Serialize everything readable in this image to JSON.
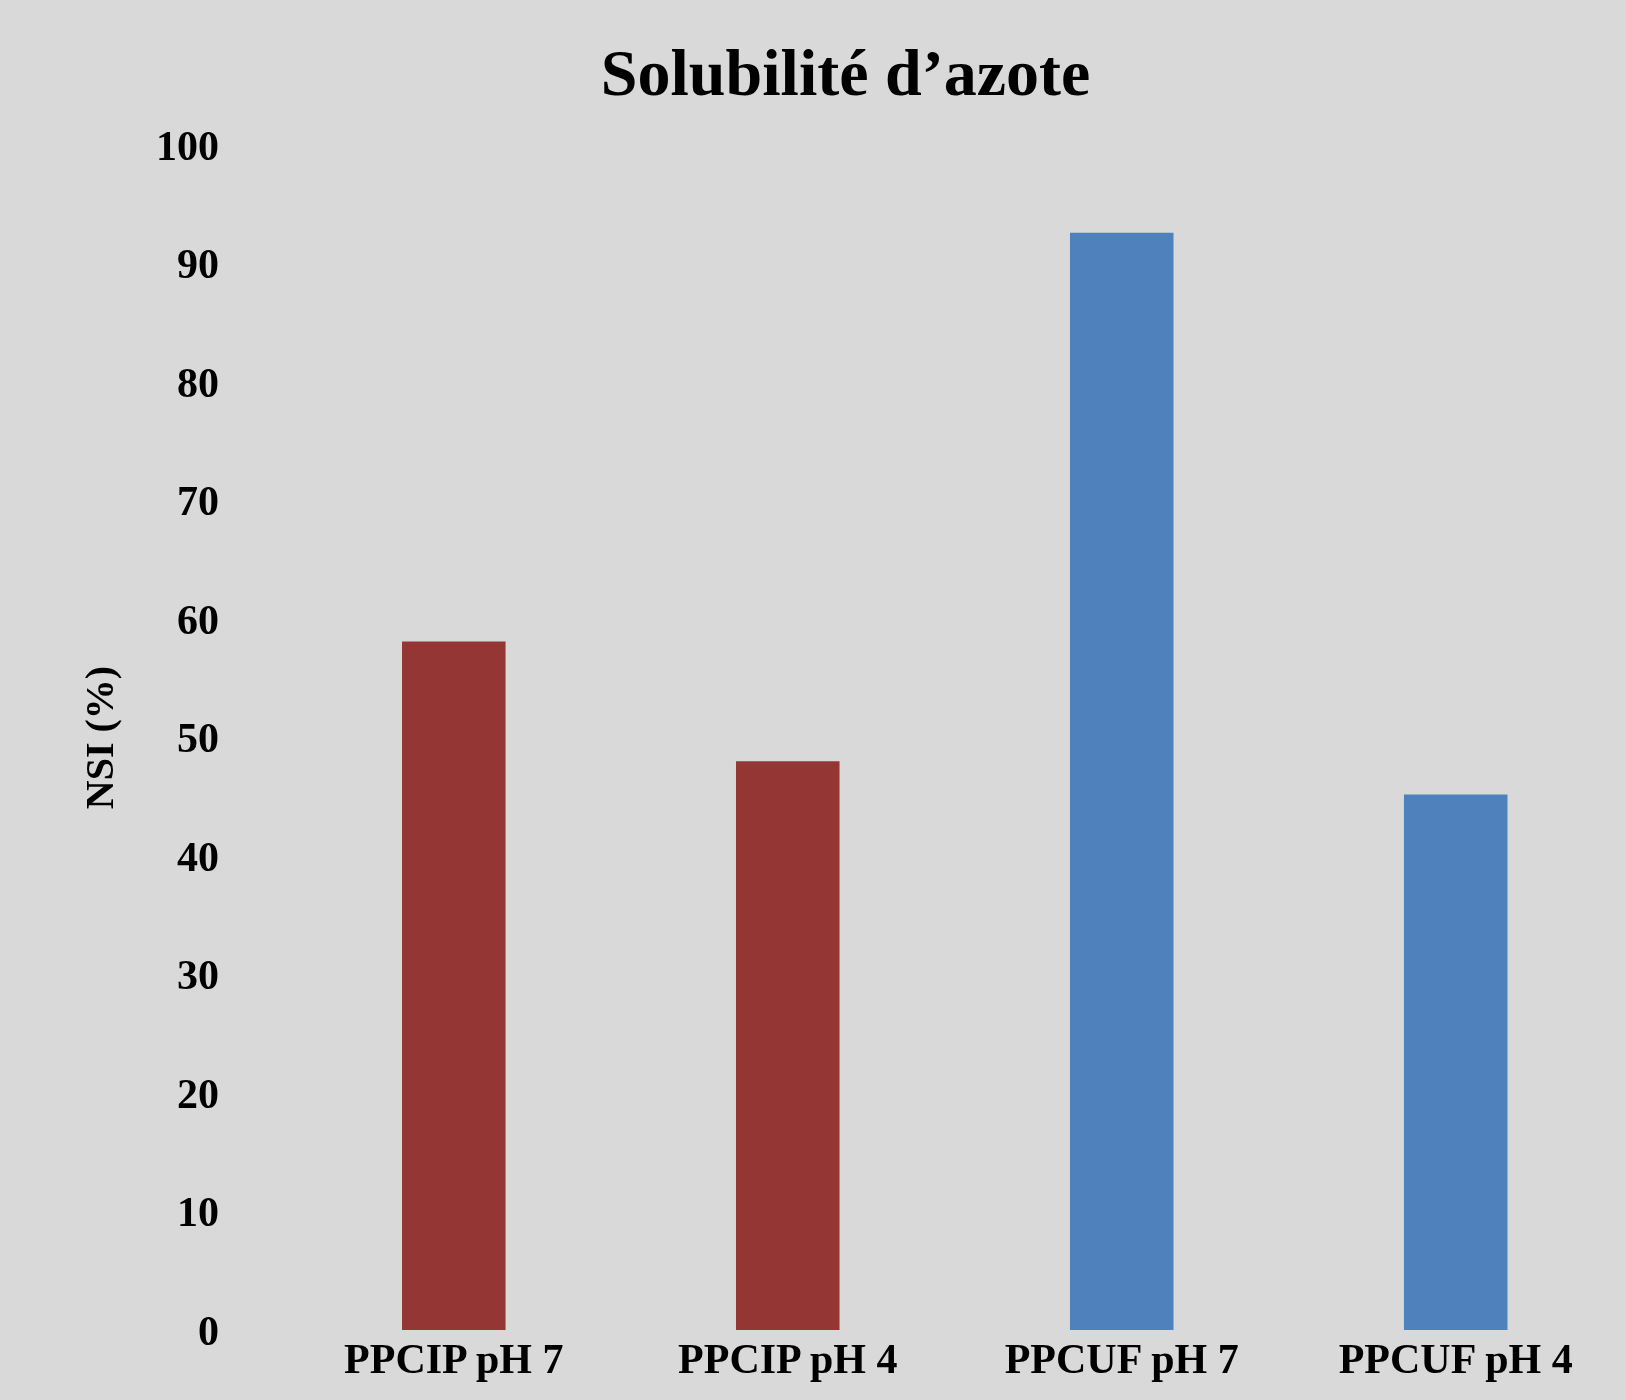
{
  "chart_data": {
    "type": "bar",
    "title": "Solubilité d’azote",
    "ylabel": "NSI (%)",
    "categories": [
      "PPCIP pH 7",
      "PPCIP pH 4",
      "PPCUF pH 7",
      "PPCUF pH 4"
    ],
    "values": [
      58.1,
      48,
      92.6,
      45.2
    ],
    "colors": [
      "#943634",
      "#943634",
      "#4f81bd",
      "#4f81bd"
    ],
    "ylim": [
      0,
      100
    ],
    "yticks": [
      0,
      10,
      20,
      30,
      40,
      50,
      60,
      70,
      80,
      90,
      100
    ],
    "grid": false
  }
}
